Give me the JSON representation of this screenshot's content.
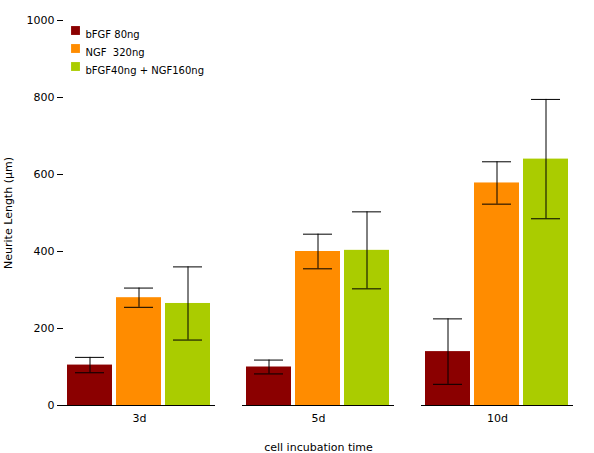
{
  "chart_data": {
    "type": "bar",
    "xlabel": "cell incubation time",
    "ylabel": "Neurite Length (μm)",
    "categories": [
      "3d",
      "5d",
      "10d"
    ],
    "series": [
      {
        "name": "bFGF 80ng",
        "color": "#8B0000",
        "values": [
          105,
          100,
          140
        ],
        "errors": [
          20,
          18,
          85
        ]
      },
      {
        "name": "NGF  320ng",
        "color": "#FF8C00",
        "values": [
          280,
          400,
          578
        ],
        "errors": [
          25,
          45,
          55
        ]
      },
      {
        "name": "bFGF40ng + NGF160ng",
        "color": "#AACC00",
        "values": [
          265,
          403,
          640
        ],
        "errors": [
          95,
          100,
          155
        ]
      }
    ],
    "ylim": [
      0,
      1000
    ],
    "yticks": [
      0,
      200,
      400,
      600,
      800,
      1000
    ],
    "grid": false,
    "legend": "upper left"
  }
}
